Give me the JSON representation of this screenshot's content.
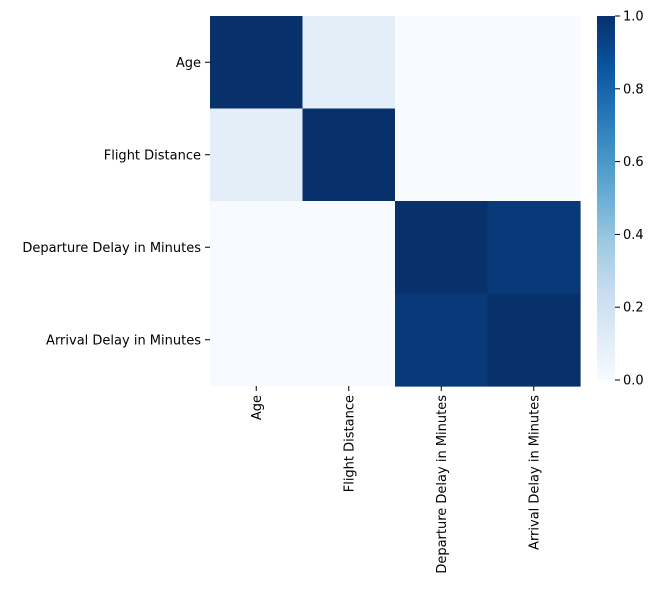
{
  "chart_data": {
    "type": "heatmap",
    "title": "",
    "xlabel": "",
    "ylabel": "",
    "row_labels": [
      "Age",
      "Flight Distance",
      "Departure Delay in Minutes",
      "Arrival Delay in Minutes"
    ],
    "col_labels": [
      "Age",
      "Flight Distance",
      "Departure Delay in Minutes",
      "Arrival Delay in Minutes"
    ],
    "values": [
      [
        1.0,
        0.1,
        -0.01,
        -0.012
      ],
      [
        0.1,
        1.0,
        0.002,
        -0.002
      ],
      [
        -0.01,
        0.002,
        1.0,
        0.965
      ],
      [
        -0.012,
        -0.002,
        0.965,
        1.0
      ]
    ],
    "colorbar": {
      "range": [
        0.0,
        1.0
      ],
      "ticks": [
        0.0,
        0.2,
        0.4,
        0.6,
        0.8,
        1.0
      ],
      "tick_labels": [
        "0.0",
        "0.2",
        "0.4",
        "0.6",
        "0.8",
        "1.0"
      ],
      "colormap": "Blues",
      "colors": [
        "#f7fbff",
        "#deebf7",
        "#c6dbef",
        "#9ecae1",
        "#6baed6",
        "#4292c6",
        "#2171b5",
        "#08519c",
        "#08306b"
      ]
    }
  }
}
